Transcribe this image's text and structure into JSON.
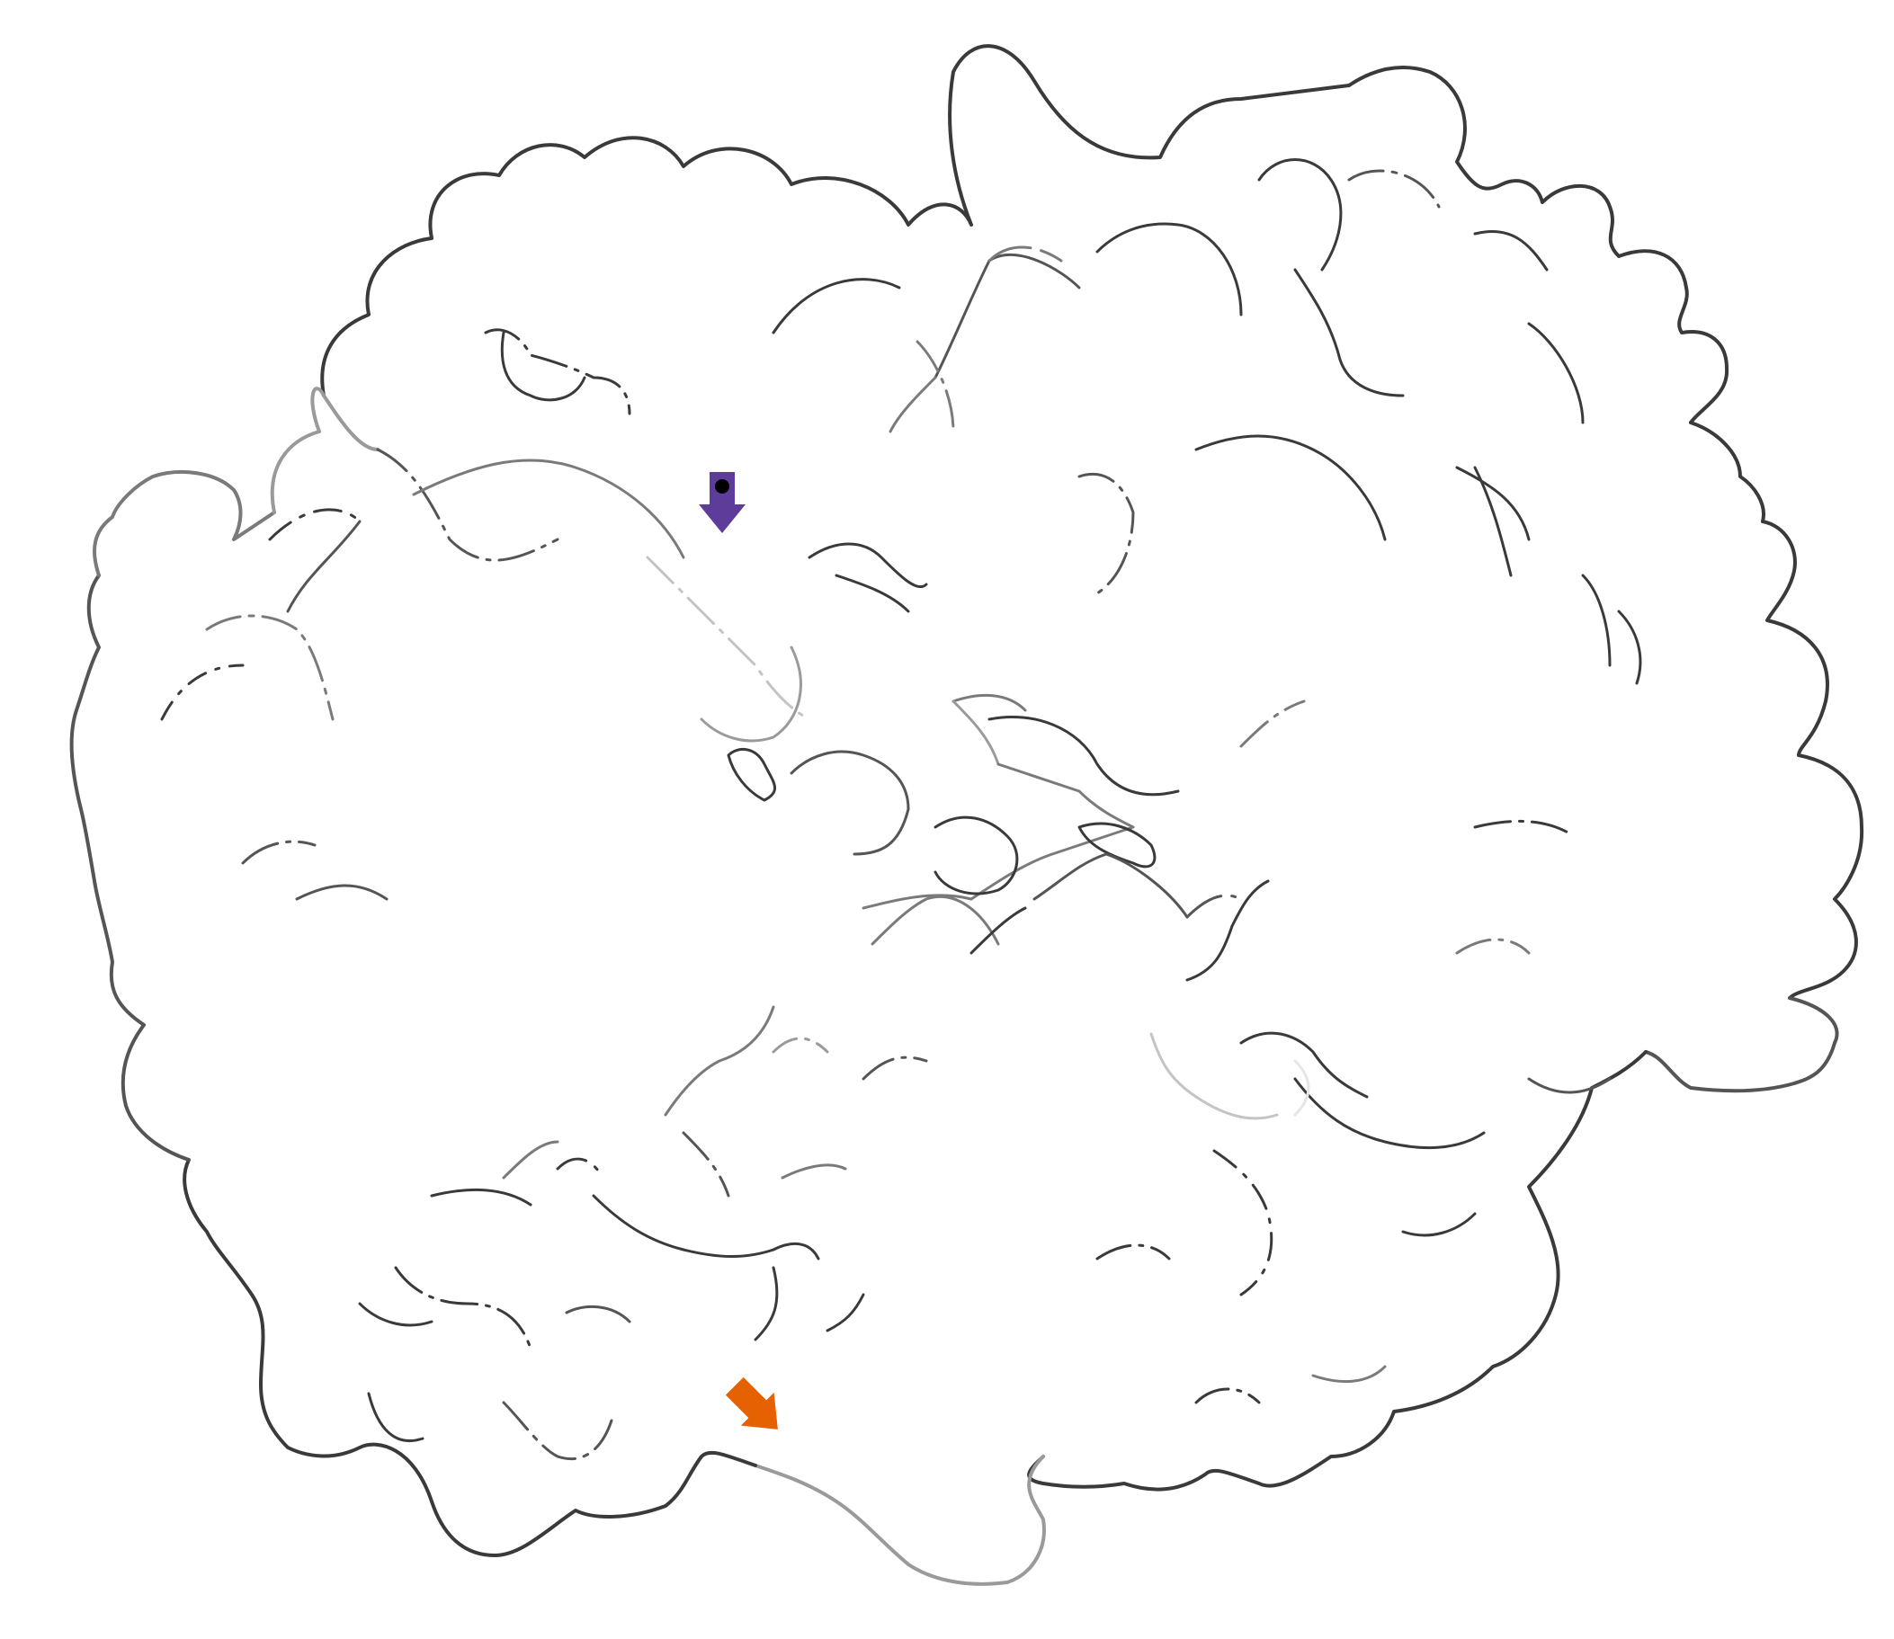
{
  "image": {
    "background": "#ffffff"
  },
  "surface": {
    "outline_colors": [
      "#3a3a3a",
      "#555555",
      "#7a7a7a",
      "#9a9a9a",
      "#c4c4c4",
      "#e6e6e6"
    ],
    "outline_segments": [
      {
        "name": "outline-top-left-lobes",
        "shade": "#3a3a3a",
        "style": "solid"
      },
      {
        "name": "outline-top-right-lobes",
        "shade": "#3a3a3a",
        "style": "solid"
      },
      {
        "name": "outline-right-side",
        "shade": "#3a3a3a",
        "style": "solid"
      },
      {
        "name": "outline-right-bulge",
        "shade": "#555555",
        "style": "solid"
      },
      {
        "name": "outline-bottom-right",
        "shade": "#3a3a3a",
        "style": "solid"
      },
      {
        "name": "outline-bottom-lobe",
        "shade": "#9a9a9a",
        "style": "solid"
      },
      {
        "name": "outline-bottom-left",
        "shade": "#3a3a3a",
        "style": "solid"
      },
      {
        "name": "outline-left-side",
        "shade": "#555555",
        "style": "solid"
      },
      {
        "name": "outline-left-upper",
        "shade": "#7a7a7a",
        "style": "solid"
      },
      {
        "name": "outline-left-notch",
        "shade": "#9a9a9a",
        "style": "solid"
      }
    ]
  },
  "markers": [
    {
      "name": "purple-arrow-marker",
      "icon": "down-arrow-icon",
      "color": "#5e3c99",
      "dot_color": "#000000"
    },
    {
      "name": "orange-arrow-marker",
      "icon": "down-right-arrow-icon",
      "color": "#e66101"
    }
  ]
}
